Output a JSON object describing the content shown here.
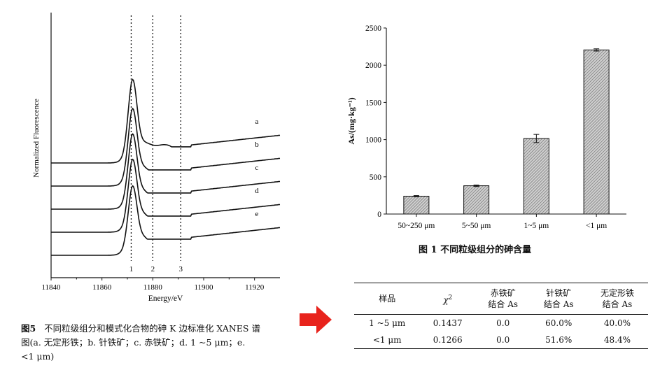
{
  "chart_data": [
    {
      "type": "line",
      "xlabel": "Energy/eV",
      "ylabel": "Normalized Fluorescence",
      "xlim": [
        11840,
        11930
      ],
      "x_ticks": [
        11840,
        11860,
        11880,
        11900,
        11920
      ],
      "reference_lines": [
        {
          "label": "1",
          "x": 11871.5
        },
        {
          "label": "2",
          "x": 11880
        },
        {
          "label": "3",
          "x": 11891
        }
      ],
      "series": [
        {
          "name": "a",
          "offset": 4,
          "peak": 11872,
          "peak_height": 3.35,
          "shoulder": 11885,
          "shoulder_height": 0.6,
          "tail": 0.95
        },
        {
          "name": "b",
          "offset": 3,
          "peak": 11872,
          "peak_height": 3.1,
          "shoulder": 11887,
          "shoulder_height": 0.35,
          "tail": 0.95
        },
        {
          "name": "c",
          "offset": 2,
          "peak": 11872,
          "peak_height": 3.0,
          "shoulder": 11889,
          "shoulder_height": 0.25,
          "tail": 0.95
        },
        {
          "name": "d",
          "offset": 1,
          "peak": 11872,
          "peak_height": 2.9,
          "shoulder": 11889,
          "shoulder_height": 0.25,
          "tail": 0.95
        },
        {
          "name": "e",
          "offset": 0,
          "peak": 11872,
          "peak_height": 2.75,
          "shoulder": 11890,
          "shoulder_height": 0.25,
          "tail": 0.95
        }
      ]
    },
    {
      "type": "bar",
      "ylabel": "As/(mg·kg⁻¹)",
      "categories": [
        "50~250 μm",
        "5~50 μm",
        "1~5 μm",
        "<1 μm"
      ],
      "values": [
        240,
        380,
        1015,
        2205
      ],
      "errors": [
        8,
        10,
        55,
        15
      ],
      "ylim": [
        0,
        2500
      ],
      "y_ticks": [
        0,
        500,
        1000,
        1500,
        2000,
        2500
      ]
    }
  ],
  "captions": {
    "fig5_label": "图5",
    "fig5_line1": "不同粒级组分和模式化合物的砷 K 边标准化 XANES 谱",
    "fig5_line2": "图(a. 无定形铁；b. 针铁矿；c. 赤铁矿；d. 1 ~5 μm；e.",
    "fig5_line3": "<1 μm)",
    "fig1": "图 1    不同粒级组分的砷含量"
  },
  "table": {
    "headers": [
      "样品",
      "χ²",
      "赤铁矿\n结合 As",
      "针铁矿\n结合 As",
      "无定形铁\n结合 As"
    ],
    "rows": [
      [
        "1 ~5 μm",
        "0.1437",
        "0.0",
        "60.0%",
        "40.0%"
      ],
      [
        "<1 μm",
        "0.1266",
        "0.0",
        "51.6%",
        "48.4%"
      ]
    ]
  },
  "colors": {
    "arrow": "#e8231c",
    "ink": "#111111"
  }
}
